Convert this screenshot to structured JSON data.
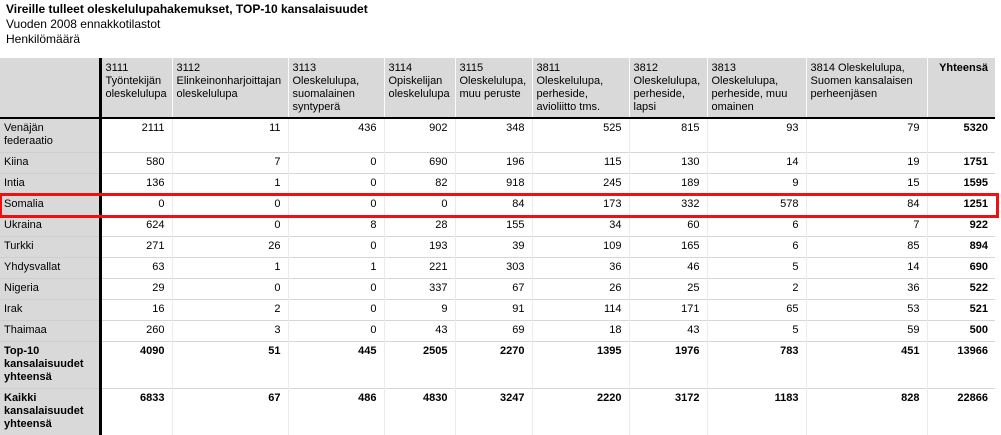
{
  "page": {
    "title": "Vireille tulleet oleskelulupahakemukset, TOP-10 kansalaisuudet",
    "subtitle1": "Vuoden 2008 ennakkotilastot",
    "subtitle2": "Henkilömäärä"
  },
  "colors": {
    "header_bg": "#d9d9d9",
    "highlight_border": "#ee1111",
    "separator": "#000000"
  },
  "table": {
    "columns": [
      {
        "code": "3111",
        "label": "Työntekijän oleskelulupa",
        "inline": false
      },
      {
        "code": "3112",
        "label": "Elinkeinonharjoittajan oleskelulupa",
        "inline": false
      },
      {
        "code": "3113",
        "label": "Oleskelulupa, suomalainen syntyperä",
        "inline": false
      },
      {
        "code": "3114",
        "label": "Opiskelijan oleskelulupa",
        "inline": false
      },
      {
        "code": "3115",
        "label": "Oleskelulupa, muu peruste",
        "inline": false
      },
      {
        "code": "3811",
        "label": "Oleskelulupa, perheside, avioliitto tms.",
        "inline": false
      },
      {
        "code": "3812",
        "label": "Oleskelulupa, perheside, lapsi",
        "inline": false
      },
      {
        "code": "3813",
        "label": "Oleskelulupa, perheside, muu omainen",
        "inline": false
      },
      {
        "code": "3814",
        "label": "Oleskelulupa, Suomen kansalaisen perheenjäsen",
        "inline": true
      },
      {
        "code": "",
        "label": "Yhteensä",
        "total": true
      }
    ],
    "rows": [
      {
        "label": "Venäjän federaatio",
        "values": [
          2111,
          11,
          436,
          902,
          348,
          525,
          815,
          93,
          79,
          5320
        ],
        "highlighted": false,
        "bold": false
      },
      {
        "label": "Kiina",
        "values": [
          580,
          7,
          0,
          690,
          196,
          115,
          130,
          14,
          19,
          1751
        ],
        "highlighted": false,
        "bold": false
      },
      {
        "label": "Intia",
        "values": [
          136,
          1,
          0,
          82,
          918,
          245,
          189,
          9,
          15,
          1595
        ],
        "highlighted": false,
        "bold": false
      },
      {
        "label": "Somalia",
        "values": [
          0,
          0,
          0,
          0,
          84,
          173,
          332,
          578,
          84,
          1251
        ],
        "highlighted": true,
        "bold": false
      },
      {
        "label": "Ukraina",
        "values": [
          624,
          0,
          8,
          28,
          155,
          34,
          60,
          6,
          7,
          922
        ],
        "highlighted": false,
        "bold": false
      },
      {
        "label": "Turkki",
        "values": [
          271,
          26,
          0,
          193,
          39,
          109,
          165,
          6,
          85,
          894
        ],
        "highlighted": false,
        "bold": false
      },
      {
        "label": "Yhdysvallat",
        "values": [
          63,
          1,
          1,
          221,
          303,
          36,
          46,
          5,
          14,
          690
        ],
        "highlighted": false,
        "bold": false
      },
      {
        "label": "Nigeria",
        "values": [
          29,
          0,
          0,
          337,
          67,
          26,
          25,
          2,
          36,
          522
        ],
        "highlighted": false,
        "bold": false
      },
      {
        "label": "Irak",
        "values": [
          16,
          2,
          0,
          9,
          91,
          114,
          171,
          65,
          53,
          521
        ],
        "highlighted": false,
        "bold": false
      },
      {
        "label": "Thaimaa",
        "values": [
          260,
          3,
          0,
          43,
          69,
          18,
          43,
          5,
          59,
          500
        ],
        "highlighted": false,
        "bold": false
      },
      {
        "label": "Top-10 kansalaisuudet yhteensä",
        "values": [
          4090,
          51,
          445,
          2505,
          2270,
          1395,
          1976,
          783,
          451,
          13966
        ],
        "highlighted": false,
        "bold": true
      },
      {
        "label": "Kaikki kansalaisuudet yhteensä",
        "values": [
          6833,
          67,
          486,
          4830,
          3247,
          2220,
          3172,
          1183,
          828,
          22866
        ],
        "highlighted": false,
        "bold": true
      }
    ]
  }
}
